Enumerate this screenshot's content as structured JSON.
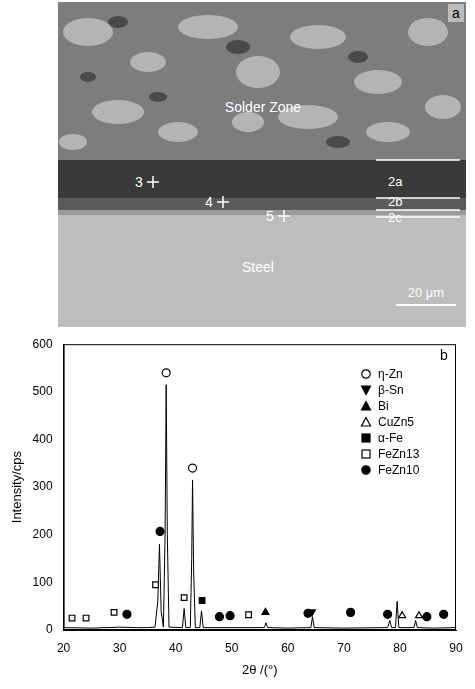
{
  "panel_a": {
    "letter": "a",
    "zone_labels": [
      "Solder Zone",
      "Steel"
    ],
    "points": [
      "3",
      "4",
      "5"
    ],
    "layers": [
      "2a",
      "2b",
      "2c"
    ],
    "scale_bar": "20 μm"
  },
  "chart_data": {
    "type": "line",
    "panel_letter": "b",
    "x_label": "2θ /(°)",
    "y_label": "Intensity/cps",
    "xlim": [
      20,
      90
    ],
    "xticks": [
      20,
      30,
      40,
      50,
      60,
      70,
      80,
      90
    ],
    "ylim": [
      0,
      600
    ],
    "yticks": [
      0,
      100,
      200,
      300,
      400,
      500,
      600
    ],
    "grid": false,
    "legend": "upper right",
    "color": "#000000",
    "x": [
      20,
      25,
      30,
      33,
      35,
      36.3,
      36.8,
      37.1,
      37.4,
      37.8,
      38.1,
      38.3,
      38.5,
      38.8,
      41.2,
      41.5,
      41.8,
      42.6,
      42.85,
      43.0,
      43.2,
      43.5,
      44.3,
      44.6,
      44.9,
      49.5,
      55.8,
      56.1,
      56.4,
      60,
      64.1,
      64.4,
      64.7,
      70,
      77.8,
      78.2,
      78.5,
      79.2,
      79.5,
      79.8,
      82.5,
      82.8,
      83.1,
      86,
      90
    ],
    "values": [
      5,
      4,
      6,
      5,
      5,
      6,
      60,
      180,
      40,
      6,
      200,
      515,
      200,
      6,
      5,
      45,
      5,
      5,
      150,
      315,
      120,
      5,
      5,
      40,
      5,
      5,
      5,
      15,
      5,
      4,
      5,
      28,
      5,
      4,
      5,
      20,
      5,
      5,
      60,
      5,
      5,
      20,
      5,
      4,
      5
    ],
    "series": [
      {
        "name": "η-Zn",
        "type": "scatter",
        "marker": "circle_open",
        "color": "#000000",
        "x": [
          38.3,
          43.0
        ],
        "values": [
          540,
          340
        ]
      },
      {
        "name": "β-Sn",
        "type": "scatter",
        "marker": "triangle_down",
        "color": "#000000",
        "x": [
          64.3
        ],
        "values": [
          38
        ]
      },
      {
        "name": "Bi",
        "type": "scatter",
        "marker": "triangle",
        "color": "#000000",
        "x": [
          56.0
        ],
        "values": [
          37
        ]
      },
      {
        "name": "CuZn5",
        "type": "scatter",
        "marker": "triangle_open",
        "color": "#000000",
        "x": [
          80.4,
          83.4
        ],
        "values": [
          30,
          30
        ]
      },
      {
        "name": "α-Fe",
        "type": "scatter",
        "marker": "square",
        "color": "#000000",
        "x": [
          44.7
        ],
        "values": [
          62
        ]
      },
      {
        "name": "FeZn13",
        "type": "scatter",
        "marker": "square_open",
        "color": "#000000",
        "x": [
          21.5,
          24.0,
          29.0,
          36.4,
          41.5,
          53.0
        ],
        "values": [
          25,
          25,
          37,
          95,
          68,
          32
        ]
      },
      {
        "name": "FeZn10",
        "type": "scatter",
        "marker": "circle",
        "color": "#000000",
        "x": [
          31.3,
          37.2,
          47.8,
          49.7,
          63.6,
          71.2,
          77.8,
          84.8,
          87.8
        ],
        "values": [
          33,
          207,
          28,
          30,
          35,
          37,
          33,
          28,
          33
        ]
      }
    ]
  }
}
